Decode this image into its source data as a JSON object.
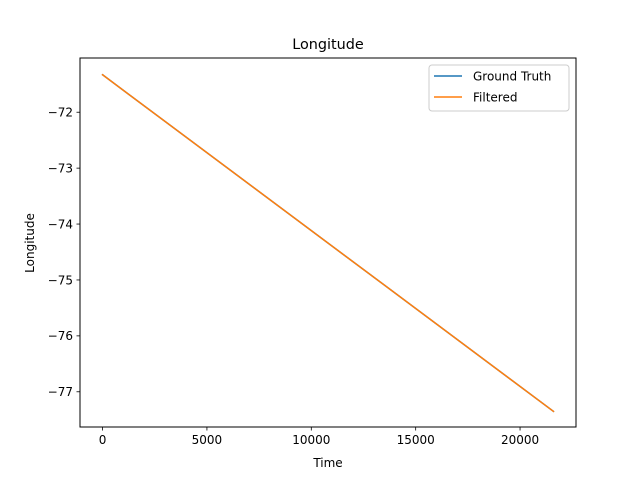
{
  "chart_data": {
    "type": "line",
    "title": "Longitude",
    "xlabel": "Time",
    "ylabel": "Longitude",
    "xlim": [
      -1080,
      22680
    ],
    "ylim": [
      -77.63,
      -71.03
    ],
    "xticks": [
      0,
      5000,
      10000,
      15000,
      20000
    ],
    "yticks": [
      -72,
      -73,
      -74,
      -75,
      -76,
      -77
    ],
    "xtick_labels": [
      "0",
      "5000",
      "10000",
      "15000",
      "20000"
    ],
    "ytick_labels": [
      "−72",
      "−73",
      "−74",
      "−75",
      "−76",
      "−77"
    ],
    "grid": false,
    "legend_position": "upper right",
    "series": [
      {
        "name": "Ground Truth",
        "color": "#1f77b4",
        "x": [
          0,
          21600
        ],
        "y": [
          -71.33,
          -77.35
        ]
      },
      {
        "name": "Filtered",
        "color": "#ff7f0e",
        "x": [
          0,
          21600
        ],
        "y": [
          -71.33,
          -77.35
        ]
      }
    ]
  }
}
